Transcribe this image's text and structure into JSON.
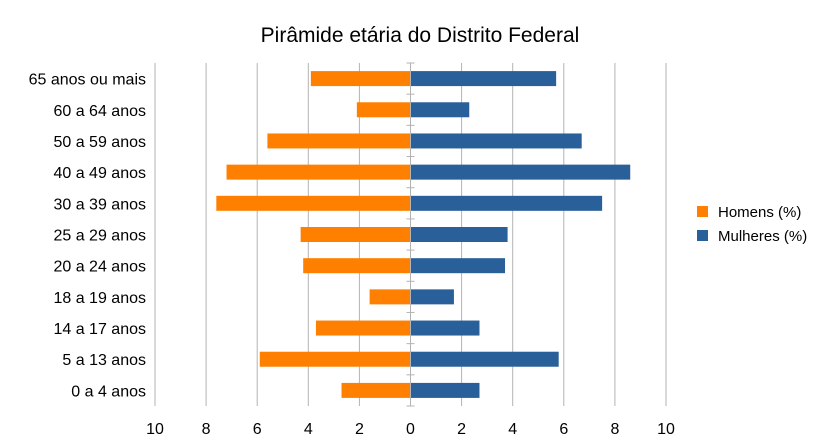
{
  "chart_data": {
    "type": "bar",
    "orientation": "horizontal",
    "title": "Pirâmide etária do Distrito Federal",
    "categories": [
      "65 anos ou mais",
      "60 a 64 anos",
      "50 a 59 anos",
      "40 a 49 anos",
      "30 a 39 anos",
      "25 a 29 anos",
      "20 a 24 anos",
      "18 a 19 anos",
      "14 a 17 anos",
      "5 a 13 anos",
      "0 a 4 anos"
    ],
    "series": [
      {
        "name": "Homens (%)",
        "color": "#ff8000",
        "values": [
          3.9,
          2.1,
          5.6,
          7.2,
          7.6,
          4.3,
          4.2,
          1.6,
          3.7,
          5.9,
          2.7
        ]
      },
      {
        "name": "Mulheres (%)",
        "color": "#2a6099",
        "values": [
          5.7,
          2.3,
          6.7,
          8.6,
          7.5,
          3.8,
          3.7,
          1.7,
          2.7,
          5.8,
          2.7
        ]
      }
    ],
    "xlim": [
      -10,
      10
    ],
    "xticks": [
      -10,
      -8,
      -6,
      -4,
      -2,
      0,
      2,
      4,
      6,
      8,
      10
    ],
    "xtick_labels": [
      "10",
      "8",
      "6",
      "4",
      "2",
      "0",
      "2",
      "4",
      "6",
      "8",
      "10"
    ],
    "grid": true,
    "legend_position": "right"
  }
}
